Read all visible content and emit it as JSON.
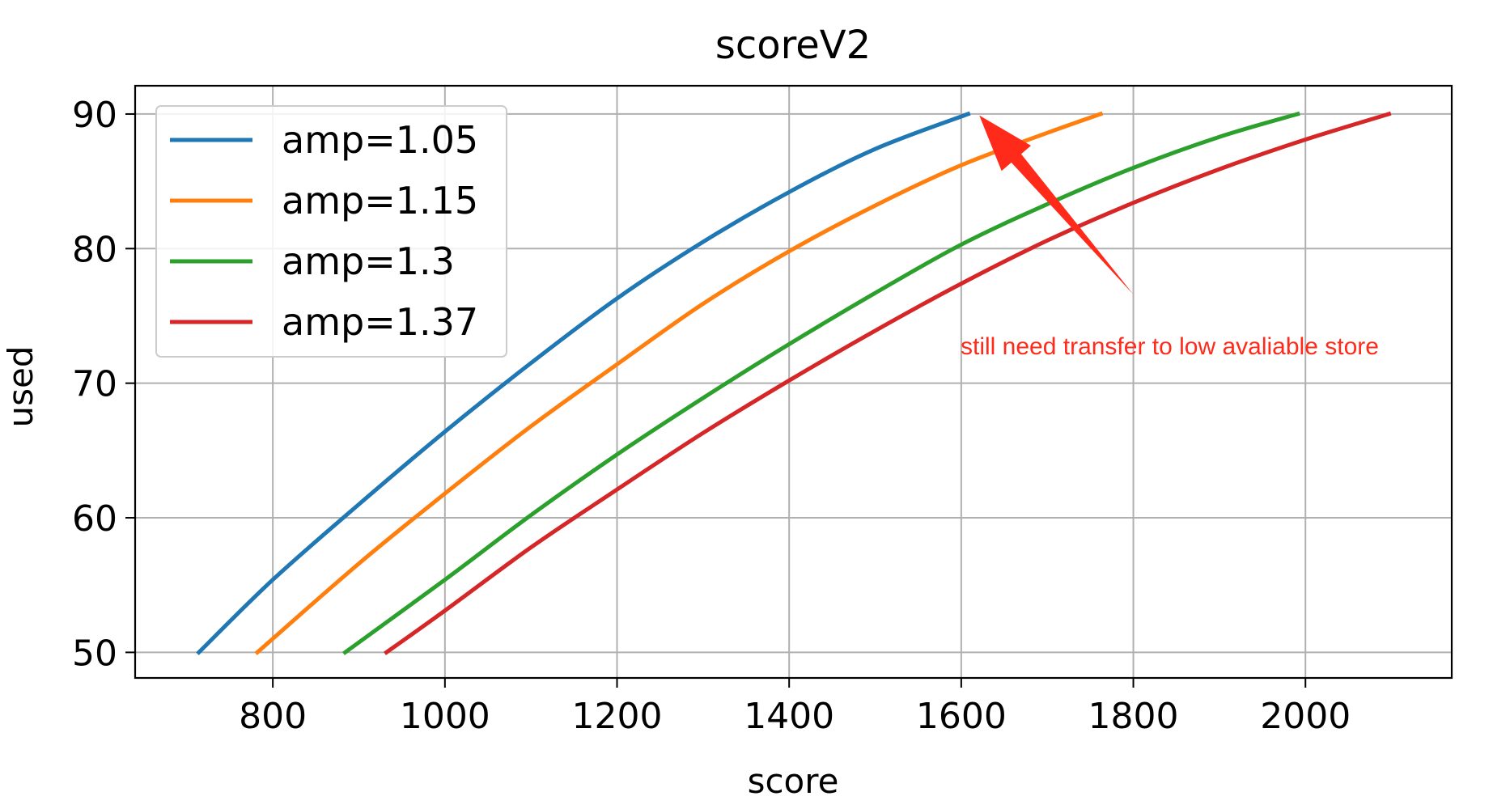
{
  "chart_data": {
    "type": "line",
    "title": "scoreV2",
    "xlabel": "score",
    "ylabel": "used",
    "xlim": [
      640,
      2170
    ],
    "ylim": [
      48.1,
      92.1
    ],
    "xticks": [
      800,
      1000,
      1200,
      1400,
      1600,
      1800,
      2000
    ],
    "yticks": [
      50,
      60,
      70,
      80,
      90
    ],
    "grid": true,
    "legend_position": "top-left",
    "series": [
      {
        "name": "amp=1.05",
        "color": "#1f77b4",
        "x": [
          714,
          800,
          900,
          1000,
          1100,
          1200,
          1300,
          1400,
          1500,
          1608
        ],
        "y": [
          50,
          55.4,
          61.0,
          66.4,
          71.5,
          76.3,
          80.5,
          84.2,
          87.4,
          90
        ]
      },
      {
        "name": "amp=1.15",
        "color": "#ff7f0e",
        "x": [
          782,
          900,
          1000,
          1100,
          1200,
          1300,
          1400,
          1500,
          1600,
          1700,
          1762
        ],
        "y": [
          50,
          56.6,
          61.8,
          66.8,
          71.4,
          75.9,
          79.8,
          83.2,
          86.2,
          88.6,
          90
        ]
      },
      {
        "name": "amp=1.3",
        "color": "#2ca02c",
        "x": [
          884,
          1000,
          1100,
          1200,
          1300,
          1400,
          1500,
          1600,
          1700,
          1800,
          1900,
          1991
        ],
        "y": [
          50,
          55.4,
          60.2,
          64.7,
          68.9,
          72.9,
          76.7,
          80.3,
          83.3,
          86.0,
          88.3,
          90
        ]
      },
      {
        "name": "amp=1.37",
        "color": "#d62728",
        "x": [
          932,
          1000,
          1100,
          1200,
          1300,
          1400,
          1500,
          1600,
          1700,
          1800,
          1900,
          2000,
          2097
        ],
        "y": [
          50,
          53.1,
          57.8,
          62.1,
          66.3,
          70.2,
          73.9,
          77.4,
          80.6,
          83.4,
          85.9,
          88.1,
          90
        ]
      }
    ],
    "annotation": {
      "text": "still need transfer to low avaliable store",
      "color": "#ff2a1a",
      "arrow_tail": {
        "x": 1800,
        "y": 76.6
      },
      "arrow_head": {
        "x": 1621,
        "y": 89.9
      }
    }
  }
}
